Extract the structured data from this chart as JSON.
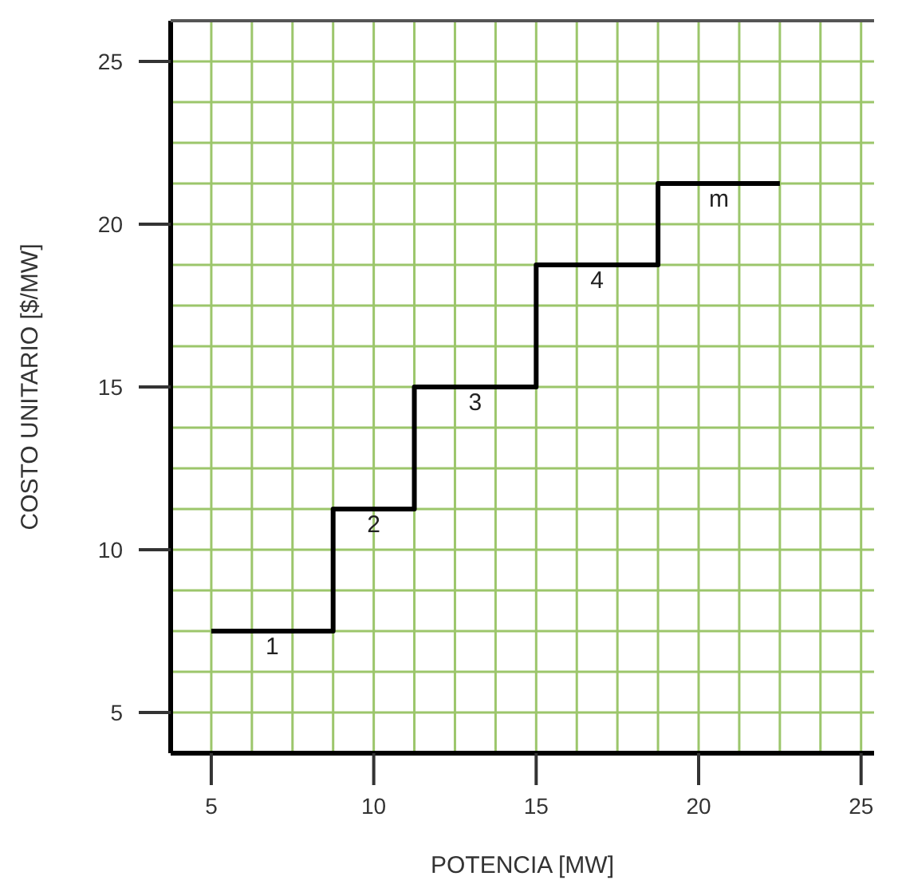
{
  "chart_data": {
    "type": "step",
    "xlabel": "POTENCIA [MW]",
    "ylabel": "COSTO UNITARIO [$/MW]",
    "x": [
      5,
      8.75,
      11.25,
      15,
      18.75,
      22.5
    ],
    "series": [
      {
        "color": "#000000",
        "values": [
          7.5,
          11.25,
          15,
          18.75,
          21.25,
          21.25
        ]
      }
    ],
    "xlim": [
      3.75,
      25.4
    ],
    "ylim": [
      3.75,
      26.25
    ],
    "xticks": [
      5,
      {
        "value": 6.25,
        "label": null
      },
      {
        "value": 7.5,
        "label": null
      },
      {
        "value": 8.75,
        "label": null
      },
      10,
      {
        "value": 11.25,
        "label": null
      },
      {
        "value": 12.5,
        "label": null
      },
      {
        "value": 13.75,
        "label": null
      },
      15,
      {
        "value": 16.25,
        "label": null
      },
      {
        "value": 17.5,
        "label": null
      },
      {
        "value": 18.75,
        "label": null
      },
      20,
      {
        "value": 21.25,
        "label": null
      },
      {
        "value": 22.5,
        "label": null
      },
      {
        "value": 23.75,
        "label": null
      },
      25
    ],
    "yticks": [
      5,
      {
        "value": 6.25,
        "label": null
      },
      {
        "value": 7.5,
        "label": null
      },
      {
        "value": 8.75,
        "label": null
      },
      10,
      {
        "value": 11.25,
        "label": null
      },
      {
        "value": 12.5,
        "label": null
      },
      {
        "value": 13.75,
        "label": null
      },
      15,
      {
        "value": 16.25,
        "label": null
      },
      {
        "value": 17.5,
        "label": null
      },
      {
        "value": 18.75,
        "label": null
      },
      20,
      {
        "value": 21.25,
        "label": null
      },
      {
        "value": 22.5,
        "label": null
      },
      {
        "value": 23.75,
        "label": null
      },
      25
    ],
    "grid": true,
    "line_style": "solid",
    "marker": "none",
    "annotations": [
      {
        "text": "1",
        "x": 6.875,
        "y": 7.5
      },
      {
        "text": "2",
        "x": 10,
        "y": 11.25
      },
      {
        "text": "3",
        "x": 13.125,
        "y": 15
      },
      {
        "text": "4",
        "x": 16.875,
        "y": 18.75
      },
      {
        "text": "m",
        "x": 20.625,
        "y": 21.25
      }
    ]
  }
}
